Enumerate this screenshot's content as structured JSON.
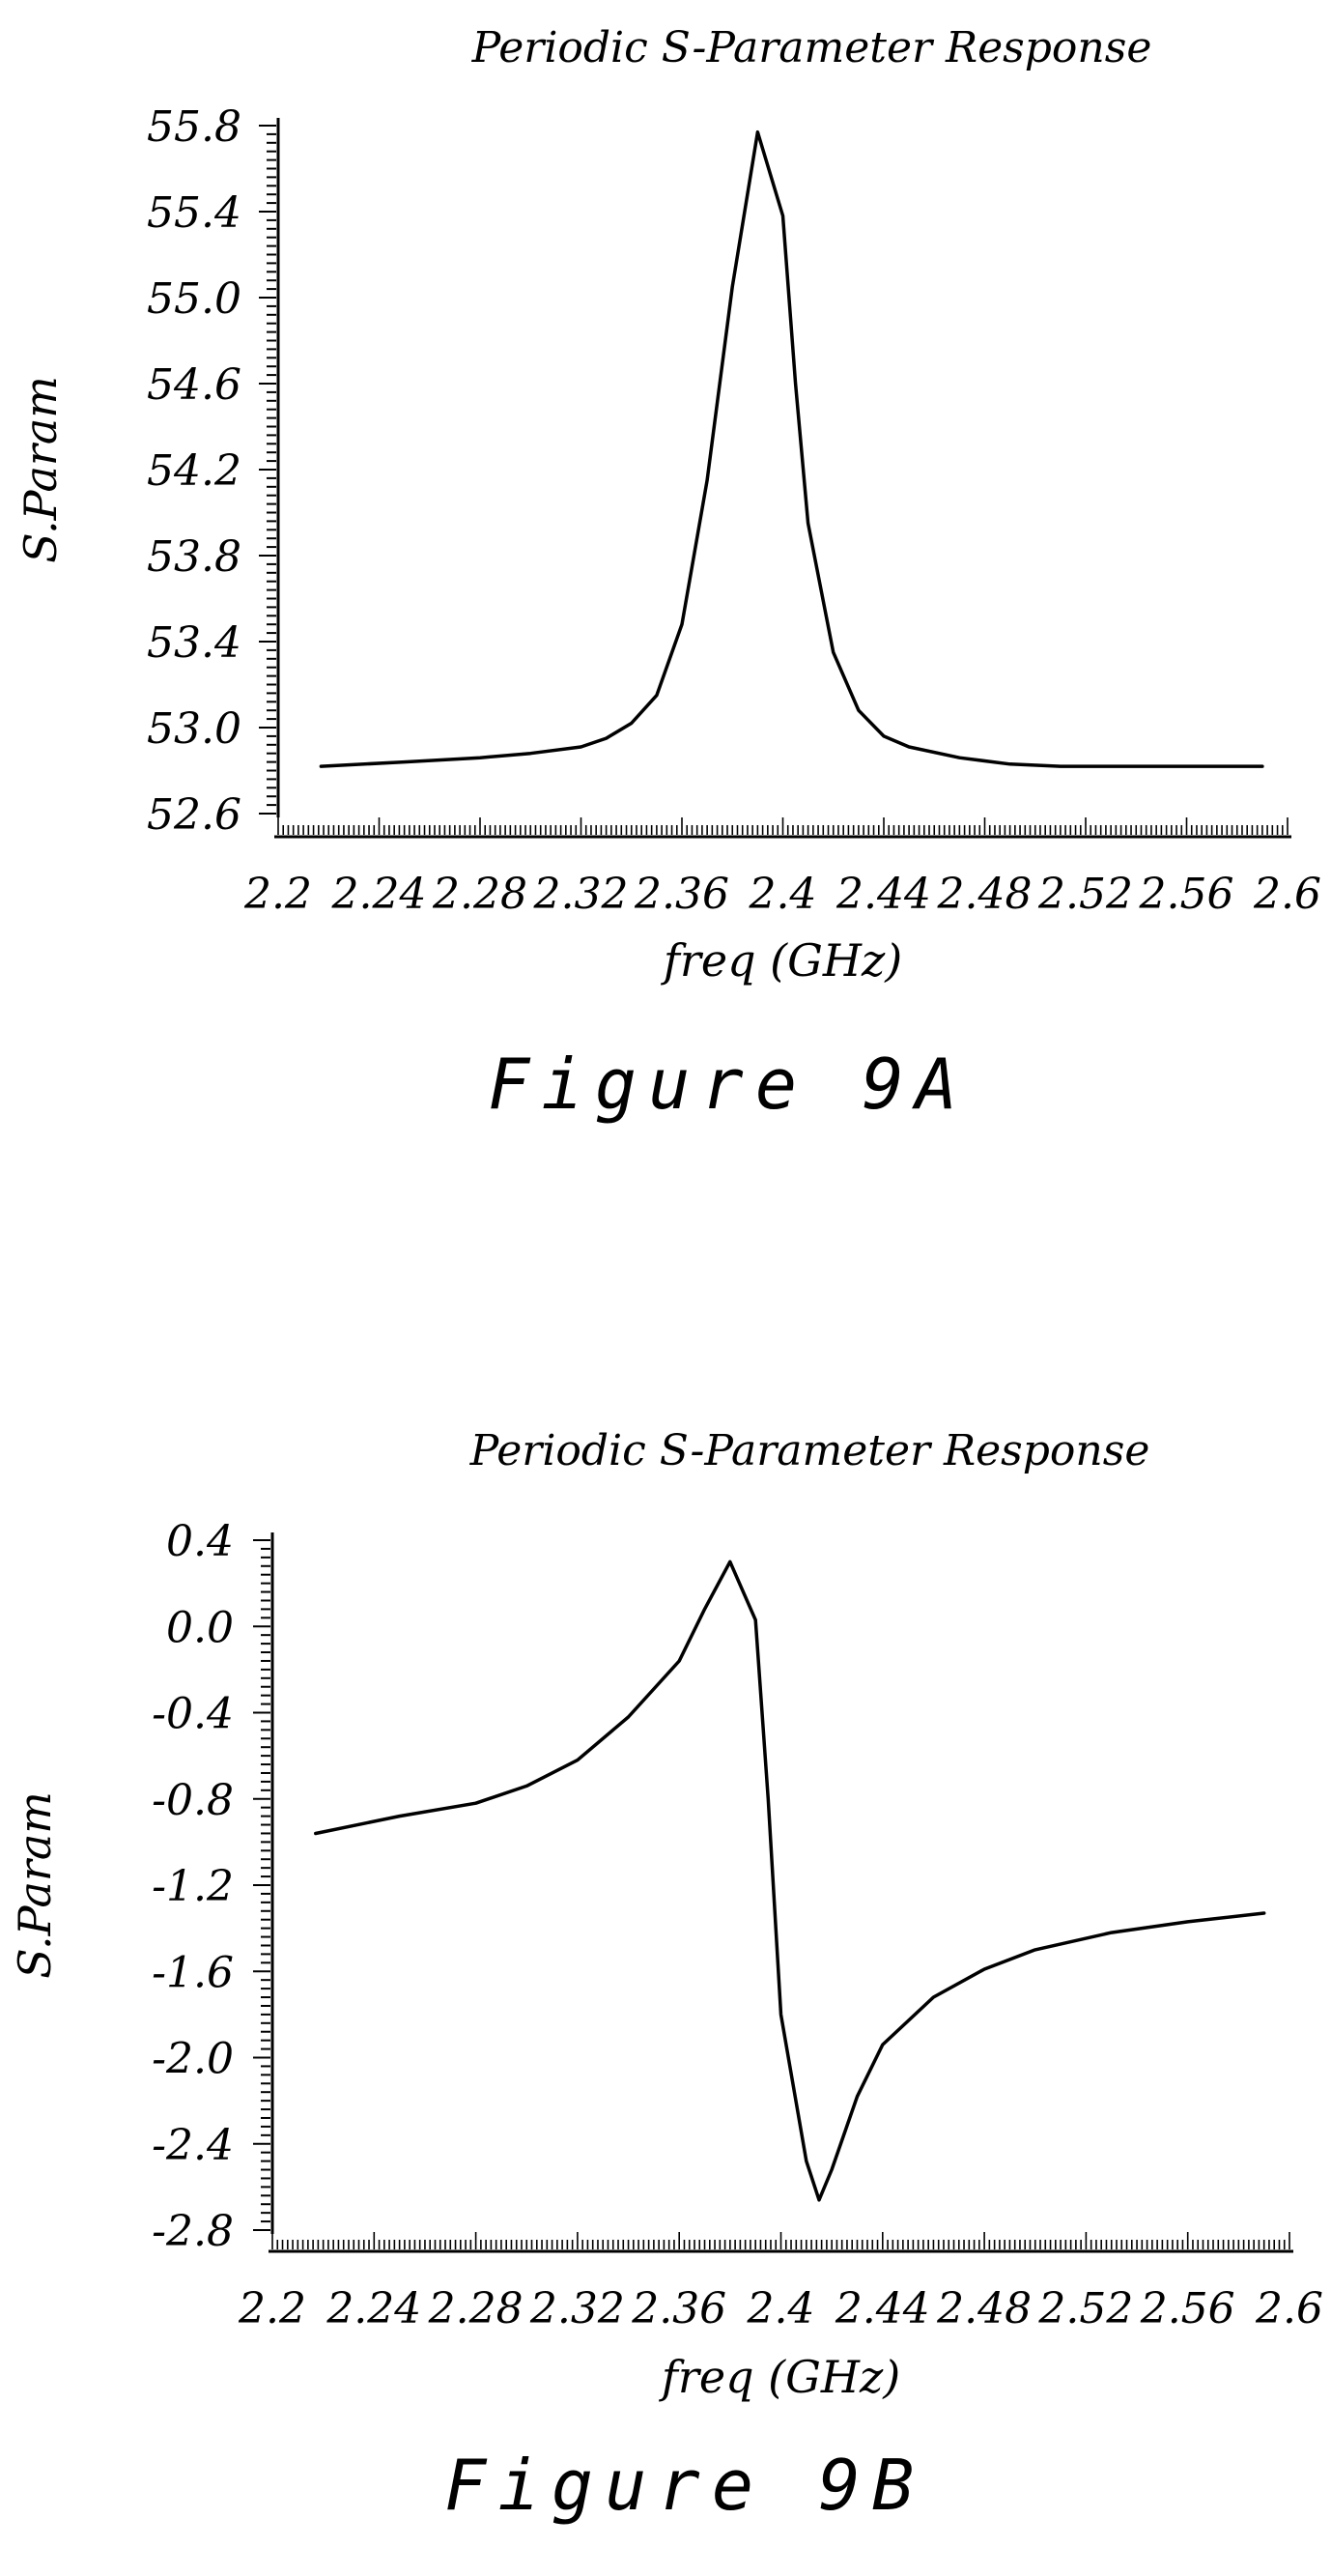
{
  "figures": [
    {
      "id": "a",
      "caption": "Figure 9A",
      "chart_data": {
        "type": "line",
        "title": "Periodic S-Parameter Response",
        "xlabel": "freq (GHz)",
        "ylabel": "S.Param",
        "xlim": [
          2.2,
          2.6
        ],
        "ylim": [
          52.6,
          55.8
        ],
        "x_ticks": [
          "2.2",
          "2.24",
          "2.28",
          "2.32",
          "2.36",
          "2.4",
          "2.44",
          "2.48",
          "2.52",
          "2.56",
          "2.6"
        ],
        "y_ticks": [
          "55.8",
          "55.4",
          "55.0",
          "54.6",
          "54.2",
          "53.8",
          "53.4",
          "53.0",
          "52.6"
        ],
        "grid": false,
        "series": [
          {
            "x": [
              2.217,
              2.25,
              2.28,
              2.3,
              2.32,
              2.33,
              2.34,
              2.35,
              2.36,
              2.37,
              2.38,
              2.39,
              2.4,
              2.405,
              2.41,
              2.42,
              2.43,
              2.44,
              2.45,
              2.47,
              2.49,
              2.51,
              2.53,
              2.56,
              2.59
            ],
            "y": [
              52.82,
              52.84,
              52.86,
              52.88,
              52.91,
              52.95,
              53.02,
              53.15,
              53.48,
              54.15,
              55.05,
              55.77,
              55.38,
              54.6,
              53.95,
              53.35,
              53.08,
              52.96,
              52.91,
              52.86,
              52.83,
              52.82,
              52.82,
              52.82,
              52.82
            ]
          }
        ]
      }
    },
    {
      "id": "b",
      "caption": "Figure 9B",
      "chart_data": {
        "type": "line",
        "title": "Periodic S-Parameter Response",
        "xlabel": "freq (GHz)",
        "ylabel": "S.Param",
        "xlim": [
          2.2,
          2.6
        ],
        "ylim": [
          -2.8,
          0.4
        ],
        "x_ticks": [
          "2.2",
          "2.24",
          "2.28",
          "2.32",
          "2.36",
          "2.4",
          "2.44",
          "2.48",
          "2.52",
          "2.56",
          "2.6"
        ],
        "y_ticks": [
          "0.4",
          "0.0",
          "-0.4",
          "-0.8",
          "-1.2",
          "-1.6",
          "-2.0",
          "-2.4",
          "-2.8"
        ],
        "grid": false,
        "series": [
          {
            "x": [
              2.217,
              2.25,
              2.28,
              2.3,
              2.32,
              2.34,
              2.36,
              2.37,
              2.38,
              2.39,
              2.395,
              2.4,
              2.41,
              2.415,
              2.42,
              2.43,
              2.44,
              2.46,
              2.48,
              2.5,
              2.53,
              2.56,
              2.59
            ],
            "y": [
              -0.96,
              -0.88,
              -0.82,
              -0.74,
              -0.62,
              -0.42,
              -0.16,
              0.08,
              0.3,
              0.03,
              -0.8,
              -1.8,
              -2.48,
              -2.66,
              -2.52,
              -2.18,
              -1.94,
              -1.72,
              -1.59,
              -1.5,
              -1.42,
              -1.37,
              -1.33
            ]
          }
        ]
      }
    }
  ]
}
